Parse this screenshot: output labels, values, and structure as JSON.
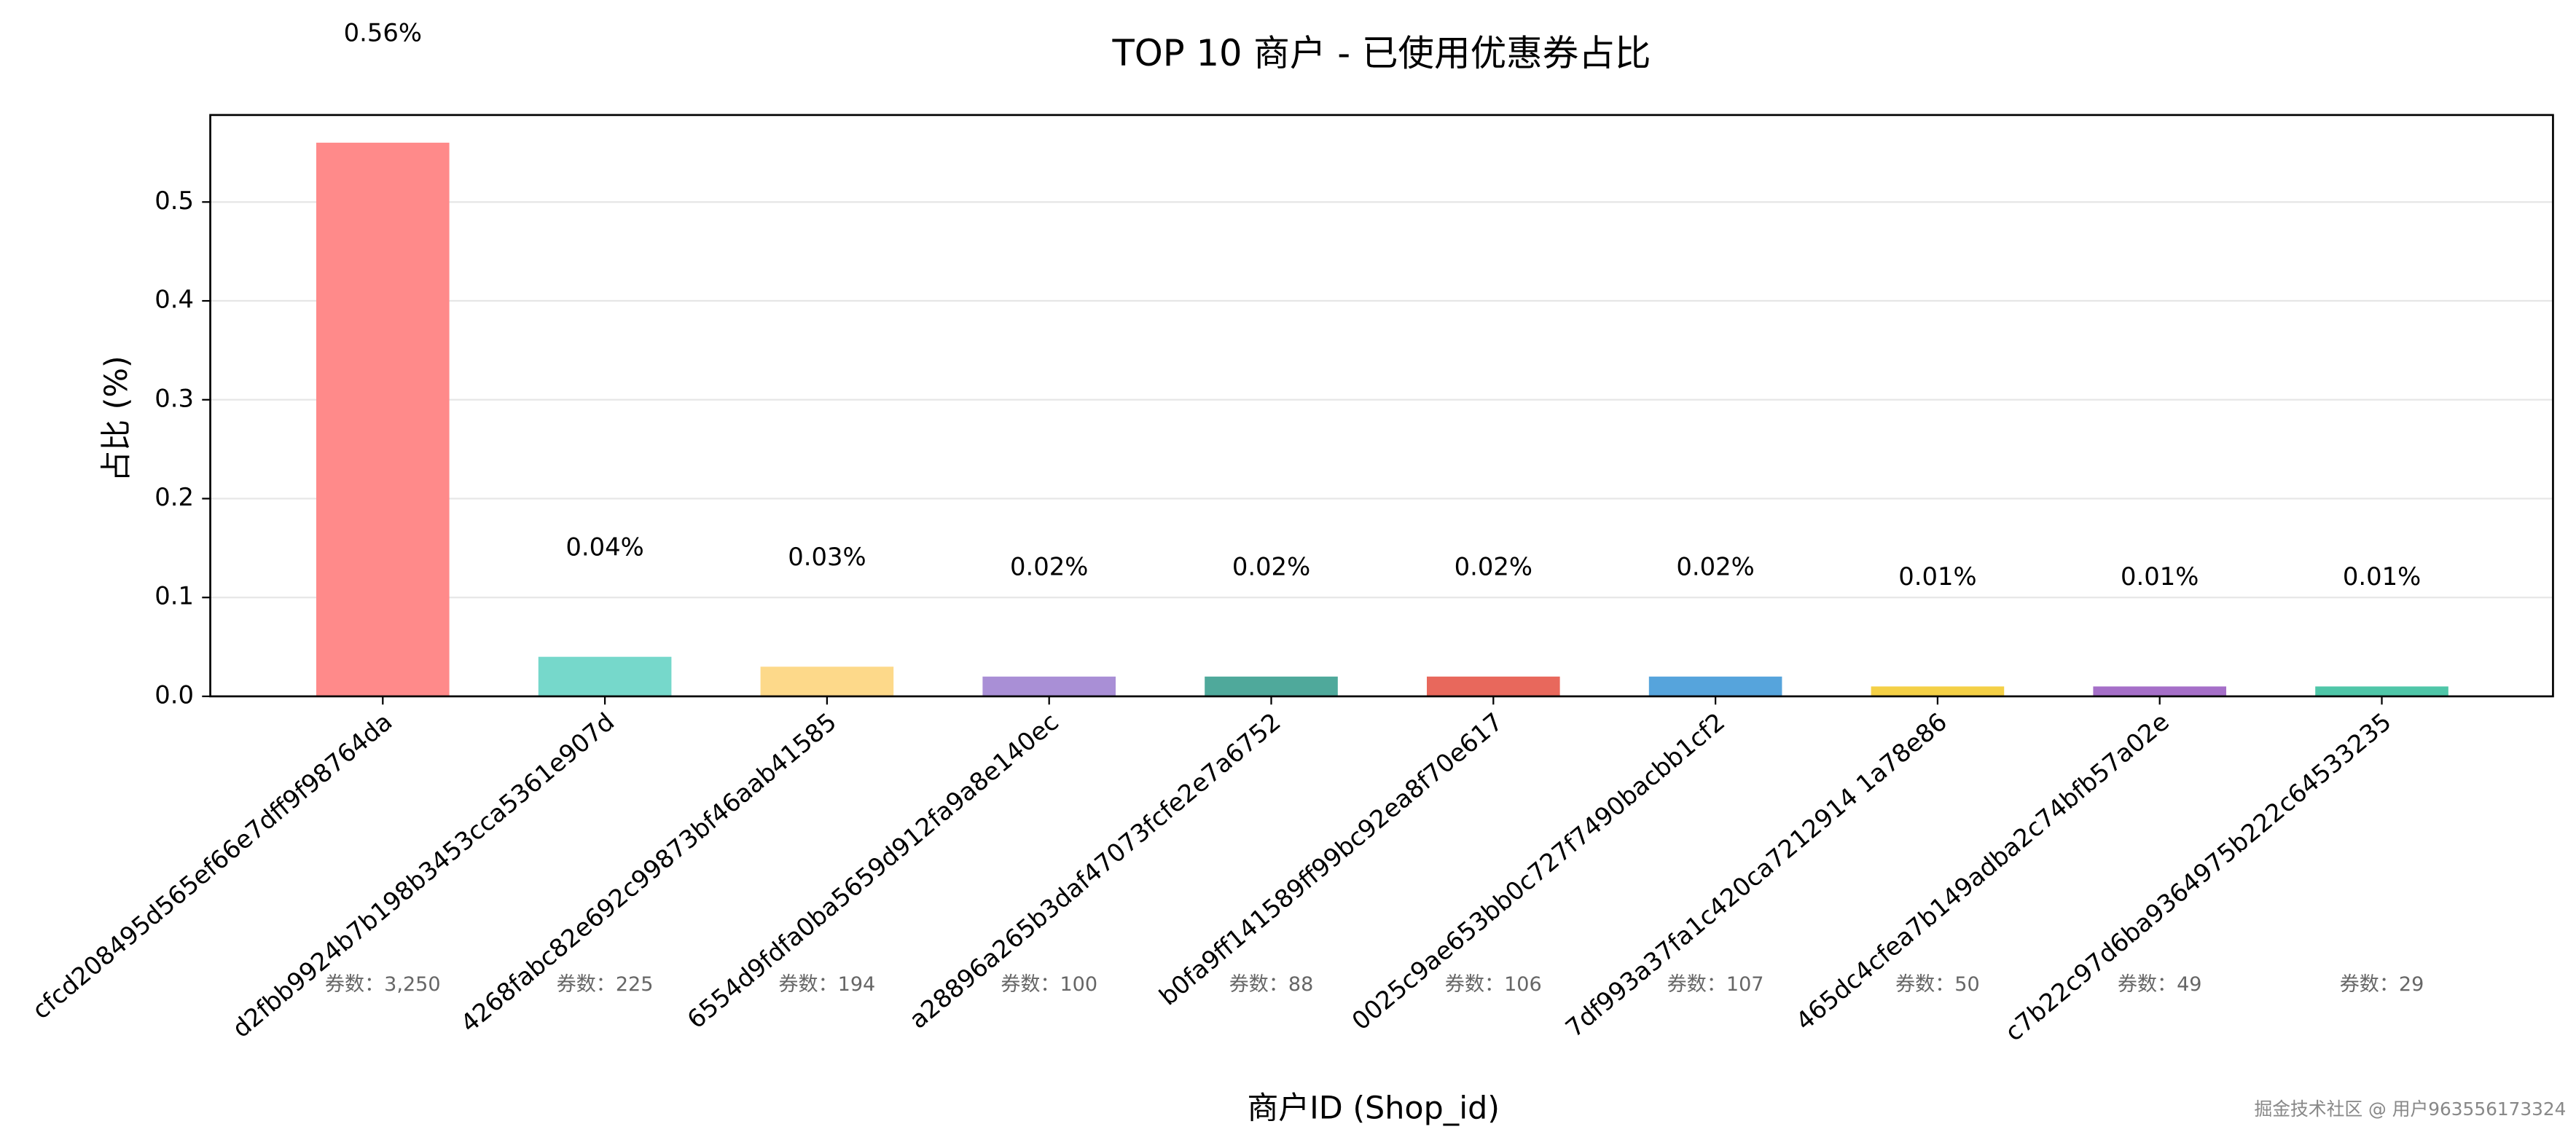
{
  "chart_data": {
    "type": "bar",
    "title": "TOP 10 商户 - 已使用优惠券占比",
    "x_label": "商户ID (Shop_id)",
    "y_label": "占比 (%)",
    "categories": [
      "cfcd208495d565ef66e7dff9f98764da",
      "d2fbb9924b7b198b3453cca5361e907d",
      "4268fabc82e692c99873bf46aab41585",
      "6554d9fdfa0ba5659d912fa9a8e140ec",
      "a28896a265b3daf47073fcfe2e7a6752",
      "b0fa9ff141589ff99bc92ea8f70e617",
      "0025c9ae653bb0c727f7490bacbb1cf2",
      "7df993a37fa1c420ca7212914 1a78e86",
      "465dc4cfea7b149adba2c74bfb57a02e",
      "c7b22c97d6ba9364975b222c64533235"
    ],
    "values": [
      0.56,
      0.04,
      0.03,
      0.02,
      0.02,
      0.02,
      0.02,
      0.01,
      0.01,
      0.01
    ],
    "value_labels": [
      "0.56%",
      "0.04%",
      "0.03%",
      "0.02%",
      "0.02%",
      "0.02%",
      "0.02%",
      "0.01%",
      "0.01%",
      "0.01%"
    ],
    "count_labels": [
      "券数：3,250",
      "券数：225",
      "券数：194",
      "券数：100",
      "券数：88",
      "券数：106",
      "券数：107",
      "券数：50",
      "券数：49",
      "券数：29"
    ],
    "colors": [
      "#ff8a8a",
      "#76d8cb",
      "#fdd98a",
      "#a98fd6",
      "#4fa99b",
      "#e8685c",
      "#56a4dc",
      "#f4d046",
      "#a56fc8",
      "#4fc6a8"
    ],
    "ylim": [
      0,
      0.588
    ],
    "yticks": [
      {
        "value": 0,
        "label": "0.0"
      },
      0.1,
      0.2,
      0.3,
      0.4,
      0.5
    ],
    "grid": true,
    "watermark": "掘金技术社区 @ 用户963556173324"
  }
}
